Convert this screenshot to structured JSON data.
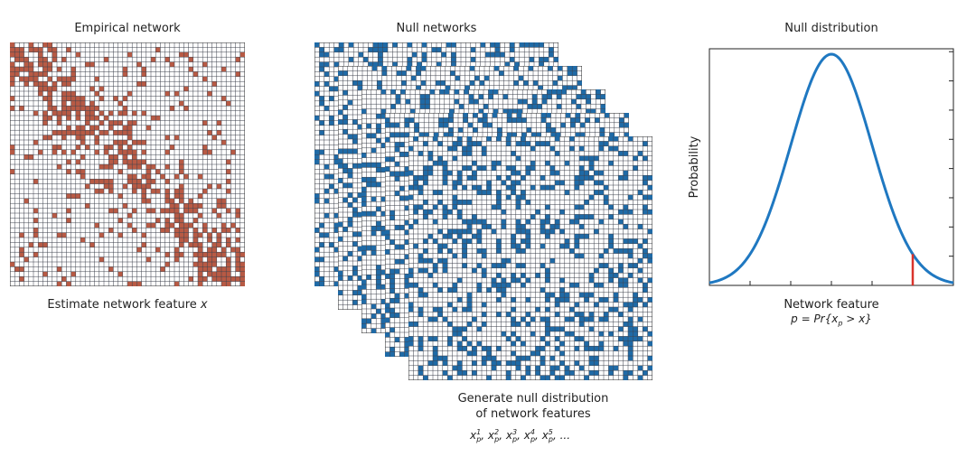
{
  "panels": {
    "empirical": {
      "title": "Empirical network",
      "caption_prefix": "Estimate network feature ",
      "caption_var": "x",
      "color": "#b85a44"
    },
    "null": {
      "title": "Null networks",
      "caption_line1": "Generate null distribution",
      "caption_line2": "of network features",
      "color": "#1f6aa6",
      "samples": [
        {
          "index": "1",
          "sub": "p",
          "var": "x"
        },
        {
          "index": "2",
          "sub": "p",
          "var": "x"
        },
        {
          "index": "3",
          "sub": "p",
          "var": "x"
        },
        {
          "index": "4",
          "sub": "p",
          "var": "x"
        },
        {
          "index": "5",
          "sub": "p",
          "var": "x"
        }
      ],
      "samples_ellipsis": "..."
    },
    "distribution": {
      "title": "Null distribution",
      "xlabel": "Network feature",
      "formula_prefix": "p = Pr{x",
      "formula_sub": "p",
      "formula_suffix": " > x}"
    }
  },
  "chart_data": {
    "type": "line",
    "title": "Null distribution",
    "xlabel": "Network feature",
    "ylabel": "Probability",
    "series": [
      {
        "name": "",
        "distribution": "gaussian",
        "mean": 0,
        "sd": 1,
        "xrange": [
          -3,
          3
        ]
      }
    ],
    "marker": {
      "x": 2.0,
      "color": "#d9332b"
    },
    "line_color": "#1f78c1",
    "grid": false
  }
}
